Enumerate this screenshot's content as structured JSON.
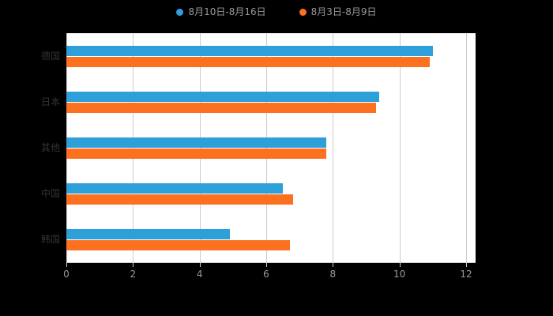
{
  "chart_data": {
    "type": "bar",
    "orientation": "horizontal",
    "title": "",
    "xlabel": "",
    "ylabel": "",
    "categories": [
      "德国",
      "日本",
      "其他",
      "中国",
      "韩国"
    ],
    "series": [
      {
        "name": "8月10日-8月16日",
        "color": "#2ea0d9",
        "values": [
          11.0,
          9.4,
          7.8,
          6.5,
          4.9
        ]
      },
      {
        "name": "8月3日-8月9日",
        "color": "#fc7120",
        "values": [
          10.9,
          9.3,
          7.8,
          6.8,
          6.7
        ]
      }
    ],
    "xlim": [
      0,
      12
    ],
    "x_ticks": [
      0,
      2,
      4,
      6,
      8,
      10,
      12
    ],
    "grid": true,
    "legend_position": "top"
  },
  "colors": {
    "background": "#000000",
    "plot_background": "#ffffff",
    "gridline": "#cccccc",
    "axis_label": "#999999",
    "category_label": "#333333",
    "legend_label": "#999999"
  }
}
